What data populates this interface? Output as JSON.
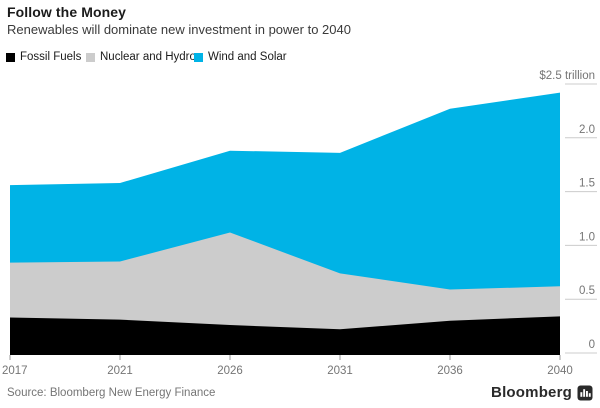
{
  "header": {
    "title": "Follow the Money",
    "subtitle": "Renewables will dominate new investment in power to 2040"
  },
  "legend": [
    {
      "label": "Fossil Fuels",
      "color": "#000000"
    },
    {
      "label": "Nuclear and Hydro",
      "color": "#cccccc"
    },
    {
      "label": "Wind and Solar",
      "color": "#00b3e6"
    }
  ],
  "chart_data": {
    "type": "area",
    "stacked": true,
    "title": "Follow the Money",
    "subtitle": "Renewables will dominate new investment in power to 2040",
    "x": [
      2017,
      2021,
      2026,
      2031,
      2036,
      2040
    ],
    "x_tick_labels": [
      "2017",
      "2021",
      "2026",
      "2031",
      "2036",
      "2040"
    ],
    "series": [
      {
        "name": "Fossil Fuels",
        "color": "#000000",
        "values": [
          0.33,
          0.31,
          0.26,
          0.22,
          0.3,
          0.34
        ]
      },
      {
        "name": "Nuclear and Hydro",
        "color": "#cccccc",
        "values": [
          0.51,
          0.54,
          0.86,
          0.52,
          0.29,
          0.28
        ]
      },
      {
        "name": "Wind and Solar",
        "color": "#00b3e6",
        "values": [
          0.72,
          0.73,
          0.76,
          1.12,
          1.68,
          1.8
        ]
      }
    ],
    "stacked_totals": [
      1.56,
      1.58,
      1.88,
      1.86,
      2.27,
      2.42
    ],
    "ylim": [
      0,
      2.5
    ],
    "ytick_values": [
      0,
      0.5,
      1.0,
      1.5,
      2.0,
      2.5
    ],
    "ytick_labels": [
      "0",
      "0.5",
      "1.0",
      "1.5",
      "2.0",
      "$2.5 trillion"
    ],
    "y_axis_side": "right",
    "legend_position": "top",
    "grid": false,
    "colors": {
      "axis_line": "#000000",
      "tick_line": "#cccccc",
      "tick_mark": "#9b9b9b",
      "axis_text": "#757575"
    }
  },
  "footer": {
    "source": "Source: Bloomberg New Energy Finance",
    "brand": "Bloomberg",
    "brand_icon": "bar-chart-icon"
  }
}
